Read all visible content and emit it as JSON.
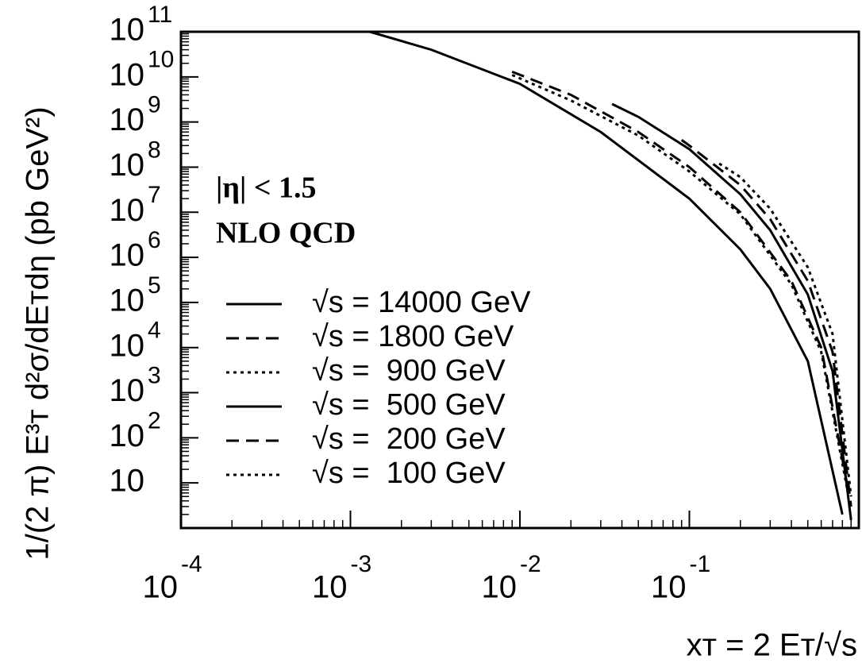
{
  "chart_data": {
    "type": "line",
    "xlabel": "xᴛ = 2 Eᴛ/√s",
    "ylabel": "1/(2 π) E³ᴛ d²σ/dEᴛdη (pb GeV²)",
    "annotations": [
      "|η| < 1.5",
      "NLO QCD"
    ],
    "xlog": true,
    "ylog": true,
    "xlim": [
      0.0001,
      1
    ],
    "ylim": [
      1,
      100000000000
    ],
    "xticks": [
      {
        "value": 0.0001,
        "label": "10",
        "exp": "-4"
      },
      {
        "value": 0.001,
        "label": "10",
        "exp": "-3"
      },
      {
        "value": 0.01,
        "label": "10",
        "exp": "-2"
      },
      {
        "value": 0.1,
        "label": "10",
        "exp": "-1"
      }
    ],
    "yticks": [
      10,
      {
        "value": 100,
        "label": "10",
        "exp": "2"
      },
      {
        "value": 1000,
        "label": "10",
        "exp": "3"
      },
      {
        "value": 10000,
        "label": "10",
        "exp": "4"
      },
      {
        "value": 100000,
        "label": "10",
        "exp": "5"
      },
      {
        "value": 1000000,
        "label": "10",
        "exp": "6"
      },
      {
        "value": 10000000,
        "label": "10",
        "exp": "7"
      },
      {
        "value": 100000000,
        "label": "10",
        "exp": "8"
      },
      {
        "value": 1000000000,
        "label": "10",
        "exp": "9"
      },
      {
        "value": 10000000000,
        "label": "10",
        "exp": "10"
      },
      {
        "value": 100000000000,
        "label": "10",
        "exp": "11"
      }
    ],
    "series": [
      {
        "name": "√s = 14000 GeV",
        "color": "#000000",
        "dash": "solid",
        "x": [
          0.0013,
          0.003,
          0.01,
          0.03,
          0.1,
          0.2,
          0.3,
          0.5,
          0.8
        ],
        "values": [
          100000000000,
          40000000000,
          7000000000,
          600000000,
          20000000,
          1500000,
          200000,
          5000,
          2
        ]
      },
      {
        "name": "√s = 1800 GeV",
        "color": "#000000",
        "dash": "dashed",
        "x": [
          0.009,
          0.02,
          0.05,
          0.1,
          0.2,
          0.4,
          0.6,
          0.85
        ],
        "values": [
          13000000000,
          4000000000,
          600000000,
          100000000,
          10000000,
          300000,
          10000,
          10
        ]
      },
      {
        "name": "√s =  900 GeV",
        "color": "#000000",
        "dash": "dotted",
        "x": [
          0.009,
          0.02,
          0.05,
          0.1,
          0.2,
          0.4,
          0.6,
          0.85
        ],
        "values": [
          11000000000,
          3000000000,
          500000000,
          80000000,
          9000000,
          250000,
          8000,
          8
        ]
      },
      {
        "name": "√s =  500 GeV",
        "color": "#000000",
        "dash": "solid",
        "x": [
          0.035,
          0.05,
          0.1,
          0.2,
          0.3,
          0.5,
          0.7,
          0.9
        ],
        "values": [
          2500000000,
          1300000000,
          250000000,
          25000000,
          4000000,
          150000,
          3000,
          1.5
        ]
      },
      {
        "name": "√s =  200 GeV",
        "color": "#000000",
        "dash": "dashed",
        "x": [
          0.09,
          0.1,
          0.2,
          0.3,
          0.5,
          0.7,
          0.9
        ],
        "values": [
          400000000,
          300000000,
          40000000,
          7000000,
          300000,
          8000,
          3
        ]
      },
      {
        "name": "√s =  100 GeV",
        "color": "#000000",
        "dash": "dotted",
        "x": [
          0.15,
          0.2,
          0.3,
          0.5,
          0.7,
          0.9
        ],
        "values": [
          120000000,
          60000000,
          12000000,
          600000,
          20000,
          5
        ]
      }
    ]
  }
}
